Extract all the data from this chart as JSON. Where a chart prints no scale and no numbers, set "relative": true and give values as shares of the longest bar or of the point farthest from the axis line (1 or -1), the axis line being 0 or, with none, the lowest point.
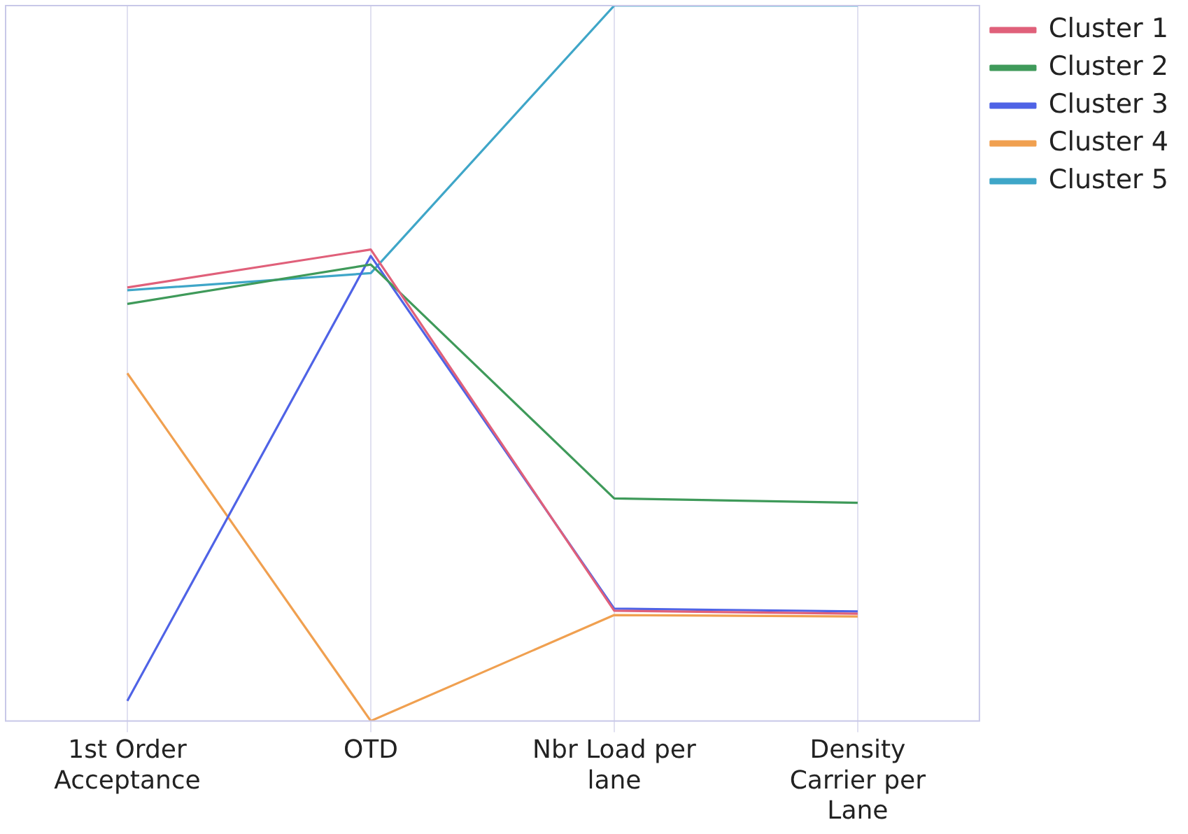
{
  "chart_data": {
    "type": "line",
    "relative": true,
    "grid": "x",
    "legend": "top right",
    "marker": "none",
    "line_style": "solid",
    "categories": [
      "1st Order Acceptance",
      "OTD",
      "Nbr Load per lane",
      "Density Carrier per Lane"
    ],
    "series": [
      {
        "name": "Cluster 1",
        "color": "#e0607a",
        "values": [
          0.606,
          0.659,
          0.154,
          0.15
        ]
      },
      {
        "name": "Cluster 2",
        "color": "#3f9a5a",
        "values": [
          0.583,
          0.638,
          0.311,
          0.305
        ]
      },
      {
        "name": "Cluster 3",
        "color": "#4f63e6",
        "values": [
          0.028,
          0.65,
          0.157,
          0.153
        ]
      },
      {
        "name": "Cluster 4",
        "color": "#f0a050",
        "values": [
          0.486,
          0,
          0.148,
          0.146
        ]
      },
      {
        "name": "Cluster 5",
        "color": "#3fa6c8",
        "values": [
          0.602,
          0.626,
          1,
          1
        ]
      }
    ]
  }
}
